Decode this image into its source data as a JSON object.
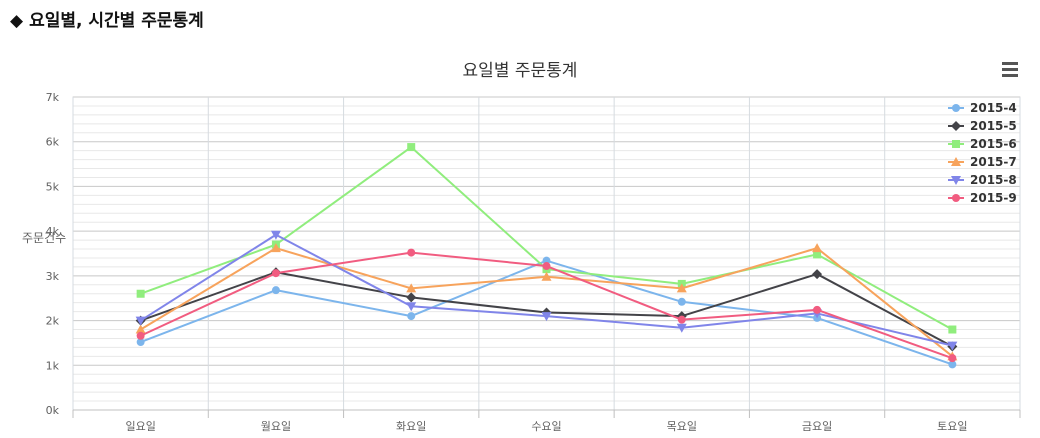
{
  "page": {
    "section_title": "요일별, 시간별 주문통계"
  },
  "chart_data": {
    "type": "line",
    "title": "요일별 주문통계",
    "xlabel": "",
    "ylabel": "주문건수",
    "categories": [
      "일요일",
      "월요일",
      "화요일",
      "수요일",
      "목요일",
      "금요일",
      "토요일"
    ],
    "ylim": [
      0,
      7000
    ],
    "yticks": [
      "0k",
      "1k",
      "2k",
      "3k",
      "4k",
      "5k",
      "6k",
      "7k"
    ],
    "legend_position": "top-right",
    "grid": true,
    "series": [
      {
        "name": "2015-4",
        "color": "#7cb5ec",
        "marker": "circle",
        "values": [
          1520,
          2680,
          2100,
          3340,
          2420,
          2060,
          1020
        ]
      },
      {
        "name": "2015-5",
        "color": "#434348",
        "marker": "diamond",
        "values": [
          2000,
          3080,
          2520,
          2180,
          2100,
          3040,
          1420
        ]
      },
      {
        "name": "2015-6",
        "color": "#90ed7d",
        "marker": "square",
        "values": [
          2600,
          3700,
          5880,
          3150,
          2820,
          3480,
          1800
        ]
      },
      {
        "name": "2015-7",
        "color": "#f7a35c",
        "marker": "triangle",
        "values": [
          1800,
          3620,
          2720,
          2980,
          2720,
          3620,
          1200
        ]
      },
      {
        "name": "2015-8",
        "color": "#8085e9",
        "marker": "triangle-down",
        "values": [
          2000,
          3920,
          2320,
          2100,
          1840,
          2160,
          1440
        ]
      },
      {
        "name": "2015-9",
        "color": "#f15c80",
        "marker": "circle",
        "values": [
          1660,
          3060,
          3520,
          3220,
          2020,
          2240,
          1160
        ]
      }
    ]
  }
}
